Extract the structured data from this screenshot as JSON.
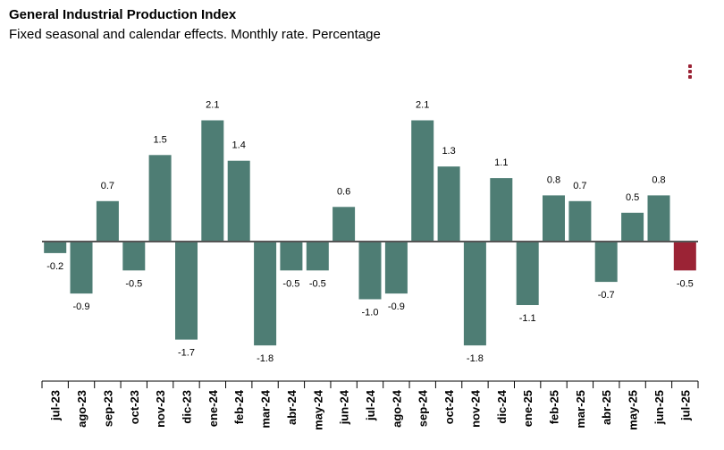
{
  "title": "General Industrial Production Index",
  "subtitle": "Fixed seasonal and calendar effects. Monthly rate. Percentage",
  "menu": {
    "icon": "vertical-dots-menu-icon"
  },
  "colors": {
    "bar": "#4e7d74",
    "highlight": "#9b2335"
  },
  "chart_data": {
    "type": "bar",
    "title": "General Industrial Production Index",
    "subtitle": "Fixed seasonal and calendar effects. Monthly rate. Percentage",
    "categories": [
      "jul-23",
      "ago-23",
      "sep-23",
      "oct-23",
      "nov-23",
      "dic-23",
      "ene-24",
      "feb-24",
      "mar-24",
      "abr-24",
      "may-24",
      "jun-24",
      "jul-24",
      "ago-24",
      "sep-24",
      "oct-24",
      "nov-24",
      "dic-24",
      "ene-25",
      "feb-25",
      "mar-25",
      "abr-25",
      "may-25",
      "jun-25",
      "jul-25"
    ],
    "values": [
      -0.2,
      -0.9,
      0.7,
      -0.5,
      1.5,
      -1.7,
      2.1,
      1.4,
      -1.8,
      -0.5,
      -0.5,
      0.6,
      -1.0,
      -0.9,
      2.1,
      1.3,
      -1.8,
      1.1,
      -1.1,
      0.8,
      0.7,
      -0.7,
      0.5,
      0.8,
      -0.5
    ],
    "labels": [
      "-0.2",
      "-0.9",
      "0.7",
      "-0.5",
      "1.5",
      "-1.7",
      "2.1",
      "1.4",
      "-1.8",
      "-0.5",
      "-0.5",
      "0.6",
      "-1.0",
      "-0.9",
      "2.1",
      "1.3",
      "-1.8",
      "1.1",
      "-1.1",
      "0.8",
      "0.7",
      "-0.7",
      "0.5",
      "0.8",
      "-0.5"
    ],
    "highlight_index": 24,
    "ylim": [
      -1.8,
      2.1
    ],
    "grid": false,
    "legend": "none"
  }
}
